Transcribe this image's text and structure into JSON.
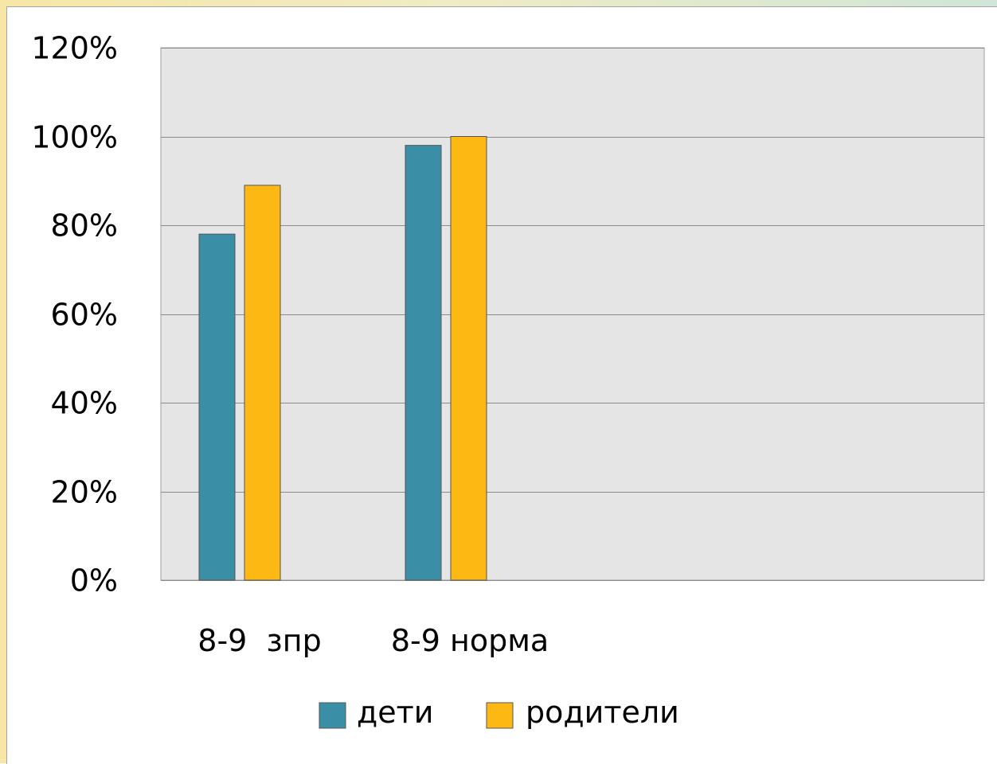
{
  "chart_data": {
    "type": "bar",
    "title": "",
    "xlabel": "",
    "ylabel": "",
    "categories": [
      "8-9  зпр",
      "8-9 норма"
    ],
    "series": [
      {
        "name": "дети",
        "values": [
          0.78,
          0.98
        ],
        "color": "#3a8fa6"
      },
      {
        "name": "родители",
        "values": [
          0.89,
          1.0
        ],
        "color": "#fdb813"
      }
    ],
    "ylim": [
      0,
      1.2
    ],
    "yticks": [
      0,
      0.2,
      0.4,
      0.6,
      0.8,
      1.0,
      1.2
    ],
    "ytick_labels": [
      "0%",
      "20%",
      "40%",
      "60%",
      "80%",
      "100%",
      "120%"
    ],
    "grid": true,
    "legend_position": "bottom",
    "colors": {
      "plot_background": "#e5e5e5",
      "gridline": "#8c8c8c"
    }
  }
}
